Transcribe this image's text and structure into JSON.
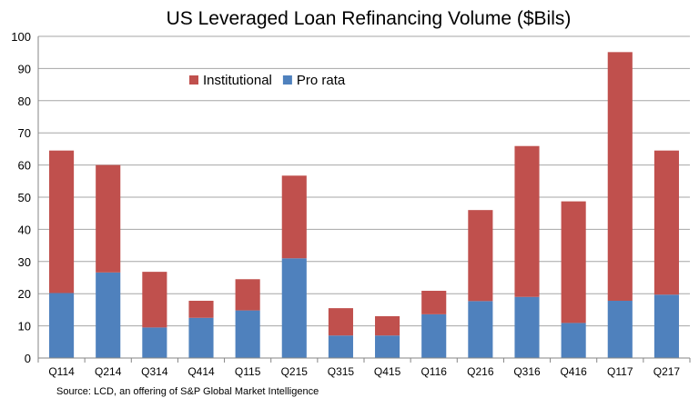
{
  "chart_data": {
    "type": "bar",
    "stacked": true,
    "title": "US Leveraged Loan Refinancing Volume ($Bils)",
    "xlabel": "",
    "ylabel": "",
    "ylim": [
      0,
      100
    ],
    "yticks": [
      0,
      10,
      20,
      30,
      40,
      50,
      60,
      70,
      80,
      90,
      100
    ],
    "grid": true,
    "legend_position": "top-left",
    "categories": [
      "Q114",
      "Q214",
      "Q314",
      "Q414",
      "Q115",
      "Q215",
      "Q315",
      "Q415",
      "Q116",
      "Q216",
      "Q316",
      "Q416",
      "Q117",
      "Q217"
    ],
    "series": [
      {
        "name": "Pro rata",
        "color": "#4f81bd",
        "values": [
          20.2,
          26.6,
          9.5,
          12.5,
          14.8,
          31.0,
          7.0,
          7.0,
          13.6,
          17.7,
          19.0,
          10.9,
          17.8,
          19.7
        ]
      },
      {
        "name": "Institutional",
        "color": "#c0504d",
        "values": [
          44.3,
          33.4,
          17.3,
          5.3,
          9.7,
          25.7,
          8.5,
          6.0,
          7.3,
          28.3,
          46.9,
          37.8,
          77.3,
          44.8
        ]
      }
    ],
    "legend_order": [
      "Institutional",
      "Pro rata"
    ],
    "source": "Source: LCD, an offering of S&P Global Market Intelligence"
  }
}
